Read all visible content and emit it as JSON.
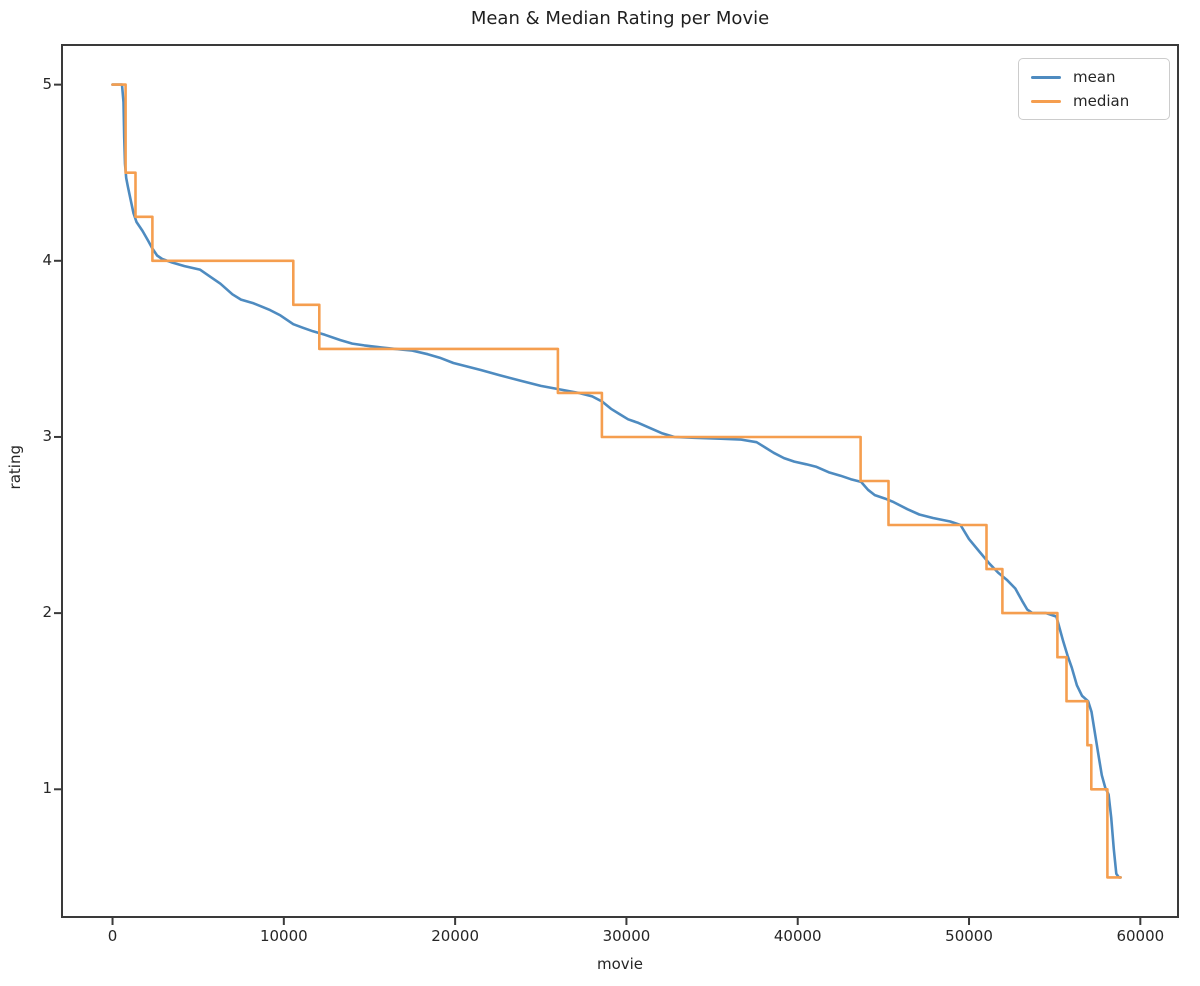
{
  "title": "Mean & Median Rating per Movie",
  "chart_data": {
    "type": "line",
    "title": "Mean & Median Rating per Movie",
    "xlabel": "movie",
    "ylabel": "rating",
    "xlim": [
      -2950,
      62200
    ],
    "ylim": [
      0.275,
      5.225
    ],
    "x_ticks": [
      0,
      10000,
      20000,
      30000,
      40000,
      50000,
      60000
    ],
    "x_tick_labels": [
      "0",
      "10000",
      "20000",
      "30000",
      "40000",
      "50000",
      "60000"
    ],
    "y_ticks": [
      1,
      2,
      3,
      4,
      5
    ],
    "y_tick_labels": [
      "1",
      "2",
      "3",
      "4",
      "5"
    ],
    "grid": false,
    "legend_position": "upper right",
    "axis_color": "#3a3a3a",
    "series": [
      {
        "name": "mean",
        "color": "#4e8bc0",
        "style": "smooth",
        "points": [
          [
            0,
            5.0
          ],
          [
            550,
            5.0
          ],
          [
            640,
            4.9
          ],
          [
            680,
            4.7
          ],
          [
            730,
            4.55
          ],
          [
            800,
            4.47
          ],
          [
            900,
            4.42
          ],
          [
            1050,
            4.35
          ],
          [
            1225,
            4.27
          ],
          [
            1400,
            4.22
          ],
          [
            1750,
            4.17
          ],
          [
            2100,
            4.11
          ],
          [
            2330,
            4.07
          ],
          [
            2600,
            4.03
          ],
          [
            2900,
            4.01
          ],
          [
            3500,
            3.99
          ],
          [
            4200,
            3.97
          ],
          [
            5100,
            3.95
          ],
          [
            5700,
            3.91
          ],
          [
            6300,
            3.87
          ],
          [
            7000,
            3.81
          ],
          [
            7500,
            3.78
          ],
          [
            8200,
            3.76
          ],
          [
            8700,
            3.74
          ],
          [
            9200,
            3.72
          ],
          [
            9800,
            3.69
          ],
          [
            10550,
            3.64
          ],
          [
            11100,
            3.62
          ],
          [
            11700,
            3.6
          ],
          [
            12400,
            3.58
          ],
          [
            13300,
            3.55
          ],
          [
            14000,
            3.53
          ],
          [
            14700,
            3.52
          ],
          [
            15500,
            3.51
          ],
          [
            16500,
            3.5
          ],
          [
            17500,
            3.49
          ],
          [
            18400,
            3.47
          ],
          [
            19100,
            3.45
          ],
          [
            19900,
            3.42
          ],
          [
            20700,
            3.4
          ],
          [
            21500,
            3.38
          ],
          [
            22600,
            3.35
          ],
          [
            23800,
            3.32
          ],
          [
            25000,
            3.29
          ],
          [
            26100,
            3.27
          ],
          [
            27200,
            3.25
          ],
          [
            28000,
            3.23
          ],
          [
            28600,
            3.2
          ],
          [
            29100,
            3.16
          ],
          [
            29600,
            3.13
          ],
          [
            30100,
            3.1
          ],
          [
            30700,
            3.08
          ],
          [
            31400,
            3.05
          ],
          [
            32100,
            3.02
          ],
          [
            32800,
            3.0
          ],
          [
            34000,
            2.995
          ],
          [
            35500,
            2.99
          ],
          [
            36700,
            2.985
          ],
          [
            37600,
            2.97
          ],
          [
            38100,
            2.94
          ],
          [
            38600,
            2.91
          ],
          [
            39200,
            2.88
          ],
          [
            39800,
            2.86
          ],
          [
            40500,
            2.845
          ],
          [
            41100,
            2.83
          ],
          [
            41800,
            2.8
          ],
          [
            42500,
            2.78
          ],
          [
            43100,
            2.76
          ],
          [
            43700,
            2.745
          ],
          [
            44100,
            2.7
          ],
          [
            44500,
            2.67
          ],
          [
            45100,
            2.65
          ],
          [
            45600,
            2.63
          ],
          [
            46400,
            2.59
          ],
          [
            47100,
            2.56
          ],
          [
            47900,
            2.54
          ],
          [
            48900,
            2.52
          ],
          [
            49500,
            2.5
          ],
          [
            50000,
            2.42
          ],
          [
            50600,
            2.35
          ],
          [
            51200,
            2.28
          ],
          [
            51700,
            2.23
          ],
          [
            52200,
            2.19
          ],
          [
            52700,
            2.14
          ],
          [
            53100,
            2.07
          ],
          [
            53400,
            2.02
          ],
          [
            53700,
            2.0
          ],
          [
            54500,
            2.0
          ],
          [
            55100,
            1.98
          ],
          [
            55300,
            1.91
          ],
          [
            55500,
            1.84
          ],
          [
            55750,
            1.76
          ],
          [
            56000,
            1.69
          ],
          [
            56300,
            1.59
          ],
          [
            56600,
            1.53
          ],
          [
            56950,
            1.5
          ],
          [
            57150,
            1.44
          ],
          [
            57350,
            1.32
          ],
          [
            57550,
            1.2
          ],
          [
            57750,
            1.08
          ],
          [
            57950,
            1.01
          ],
          [
            58150,
            0.97
          ],
          [
            58300,
            0.84
          ],
          [
            58450,
            0.66
          ],
          [
            58600,
            0.52
          ],
          [
            58750,
            0.5
          ],
          [
            58850,
            0.5
          ]
        ]
      },
      {
        "name": "median",
        "color": "#f59e4f",
        "style": "steps",
        "steps": [
          [
            0,
            760,
            5.0
          ],
          [
            760,
            1340,
            4.5
          ],
          [
            1340,
            2330,
            4.25
          ],
          [
            2330,
            10550,
            4.0
          ],
          [
            10550,
            12070,
            3.75
          ],
          [
            12070,
            26000,
            3.5
          ],
          [
            26000,
            28570,
            3.25
          ],
          [
            28570,
            43670,
            3.0
          ],
          [
            43670,
            45300,
            2.75
          ],
          [
            45300,
            51020,
            2.5
          ],
          [
            51020,
            51950,
            2.25
          ],
          [
            51950,
            55160,
            2.0
          ],
          [
            55160,
            55690,
            1.75
          ],
          [
            55690,
            56910,
            1.5
          ],
          [
            56910,
            57140,
            1.25
          ],
          [
            57140,
            58080,
            1.0
          ],
          [
            58080,
            58850,
            0.5
          ]
        ]
      }
    ]
  }
}
